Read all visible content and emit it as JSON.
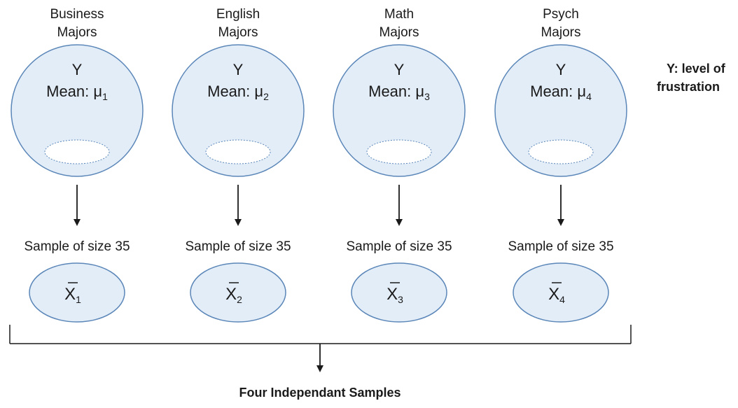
{
  "populations": [
    {
      "name_line1": "Business",
      "name_line2": "Majors",
      "variable": "Y",
      "mean_prefix": "Mean: μ",
      "mean_sub": "1",
      "sample_label": "Sample of size 35",
      "xbar_letter": "X",
      "xbar_sub": "1"
    },
    {
      "name_line1": "English",
      "name_line2": "Majors",
      "variable": "Y",
      "mean_prefix": "Mean: μ",
      "mean_sub": "2",
      "sample_label": "Sample of size 35",
      "xbar_letter": "X",
      "xbar_sub": "2"
    },
    {
      "name_line1": "Math",
      "name_line2": "Majors",
      "variable": "Y",
      "mean_prefix": "Mean: μ",
      "mean_sub": "3",
      "sample_label": "Sample of size 35",
      "xbar_letter": "X",
      "xbar_sub": "3"
    },
    {
      "name_line1": "Psych",
      "name_line2": "Majors",
      "variable": "Y",
      "mean_prefix": "Mean: μ",
      "mean_sub": "4",
      "sample_label": "Sample of size 35",
      "xbar_letter": "X",
      "xbar_sub": "4"
    }
  ],
  "side_note": {
    "line1": "Y: level of",
    "line2": "frustration"
  },
  "footer": {
    "label": "Four Independant Samples"
  },
  "colors": {
    "fill": "#e3edf8",
    "stroke": "#5a86b8",
    "line": "#1a1a1a"
  }
}
